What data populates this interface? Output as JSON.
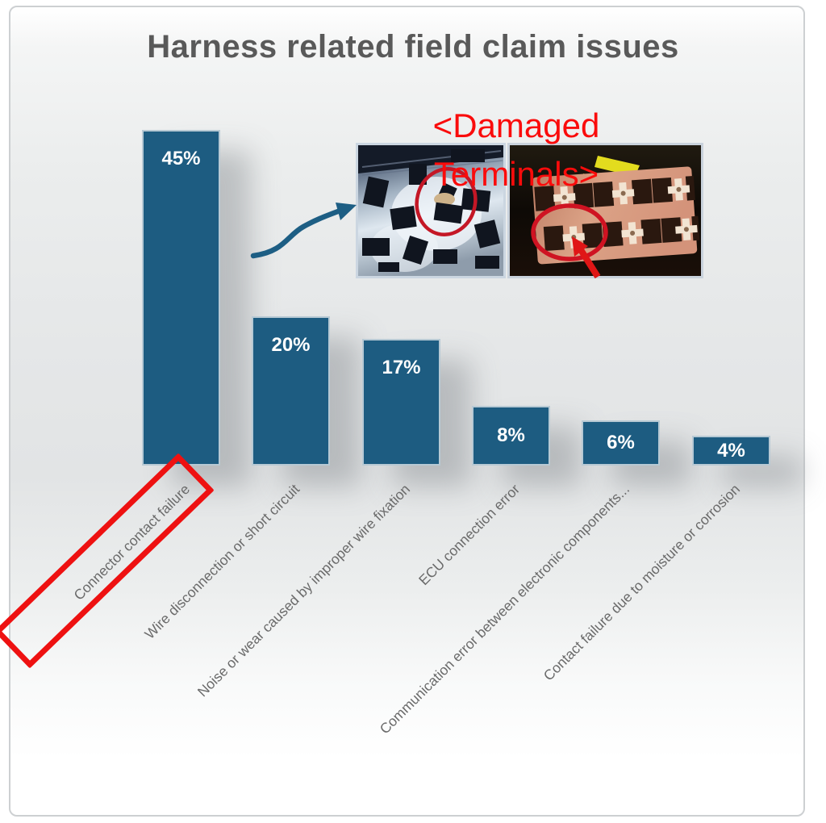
{
  "slide": {
    "title": "Harness related field claim issues",
    "title_color": "#595959",
    "border_color": "#cdd0d2"
  },
  "chart_data": {
    "type": "bar",
    "title": "Harness related field claim issues",
    "categories": [
      "Connector contact failure",
      "Wire disconnection or short circuit",
      "Noise or wear caused by improper wire fixation",
      "ECU connection error",
      "Communication error between electronic components...",
      "Contact failure due to moisture or corrosion"
    ],
    "values": [
      45,
      20,
      17,
      8,
      6,
      4
    ],
    "value_labels": [
      "45%",
      "20%",
      "17%",
      "8%",
      "6%",
      "4%"
    ],
    "ylim": [
      0,
      50
    ],
    "grid": false,
    "legend": false,
    "xlabel": "",
    "ylabel": "",
    "bar_color": "#1d5c81",
    "bar_border_color": "#b7c9d4",
    "value_label_color": "#ffffff",
    "category_label_color": "#6a6a6a"
  },
  "annotations": {
    "damaged_terminals": {
      "line1": "<Damaged",
      "line2": "Terminals>",
      "color": "#fa0b0b"
    },
    "highlight_box": {
      "target_category": "Connector contact failure",
      "color": "#ee1111"
    },
    "curved_arrow_color": "#1d5e84",
    "photo_marker_color": "#cf1322"
  }
}
